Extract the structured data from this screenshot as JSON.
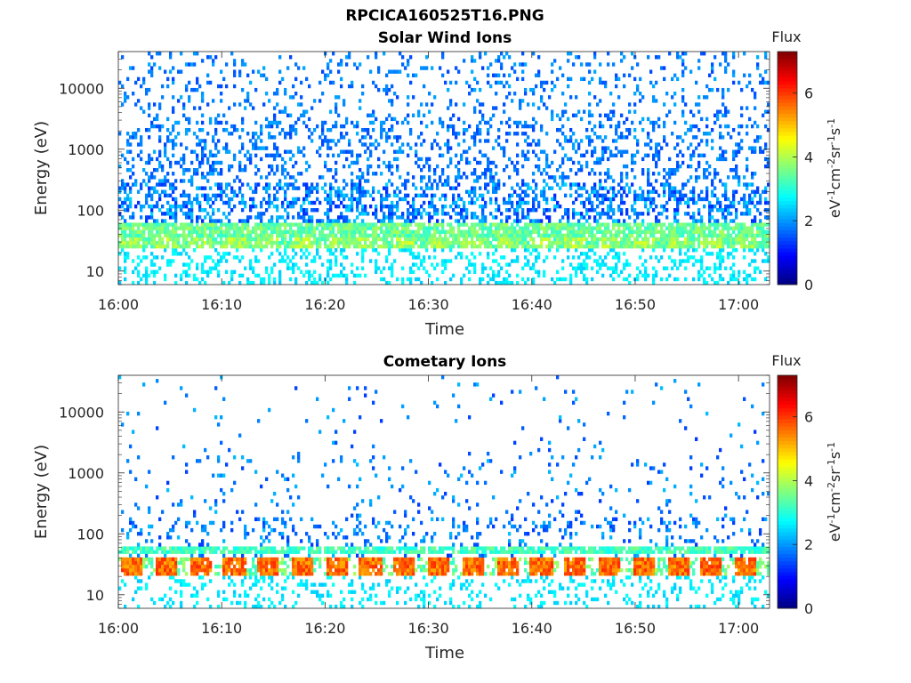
{
  "figure": {
    "title": "RPCICA160525T16.PNG"
  },
  "chart_data": [
    {
      "type": "heatmap",
      "title": "Solar Wind Ions",
      "xlabel": "Time",
      "ylabel": "Energy (eV)",
      "x_ticks": [
        "16:00",
        "16:10",
        "16:20",
        "16:30",
        "16:40",
        "16:50",
        "17:00"
      ],
      "x_range_minutes": [
        0,
        63
      ],
      "y_ticks": [
        {
          "value": 10,
          "label": "10"
        },
        {
          "value": 100,
          "label": "100"
        },
        {
          "value": 1000,
          "label": "1000"
        },
        {
          "value": 10000,
          "label": "10000"
        }
      ],
      "y_scale": "log",
      "y_range": [
        6,
        40000
      ],
      "colorbar": {
        "title": "Flux",
        "label": "eV-1cm-2sr-1s-1",
        "ticks": [
          0,
          2,
          4,
          6
        ],
        "range": [
          0,
          7.3
        ],
        "colormap": "jet"
      },
      "description_of_pattern": {
        "sweep_period_minutes": 3.3,
        "main_band_energy_eV": [
          25,
          60
        ],
        "main_band_flux": 3.5,
        "low_energy_flux": 2.6,
        "high_energy_scatter_flux": 1.7
      }
    },
    {
      "type": "heatmap",
      "title": "Cometary Ions",
      "xlabel": "Time",
      "ylabel": "Energy (eV)",
      "x_ticks": [
        "16:00",
        "16:10",
        "16:20",
        "16:30",
        "16:40",
        "16:50",
        "17:00"
      ],
      "x_range_minutes": [
        0,
        63
      ],
      "y_ticks": [
        {
          "value": 10,
          "label": "10"
        },
        {
          "value": 100,
          "label": "100"
        },
        {
          "value": 1000,
          "label": "1000"
        },
        {
          "value": 10000,
          "label": "10000"
        }
      ],
      "y_scale": "log",
      "y_range": [
        6,
        40000
      ],
      "colorbar": {
        "title": "Flux",
        "label": "eV-1cm-2sr-1s-1",
        "ticks": [
          0,
          2,
          4,
          6
        ],
        "range": [
          0,
          7.3
        ],
        "colormap": "jet"
      },
      "description_of_pattern": {
        "sweep_period_minutes": 3.3,
        "main_band_energy_eV": [
          20,
          40
        ],
        "main_band_flux": 5.6,
        "upper_band_energy_eV": [
          45,
          65
        ],
        "upper_band_flux": 3.2,
        "low_energy_flux": 2.6,
        "high_energy_scatter_flux": 1.6
      }
    }
  ]
}
